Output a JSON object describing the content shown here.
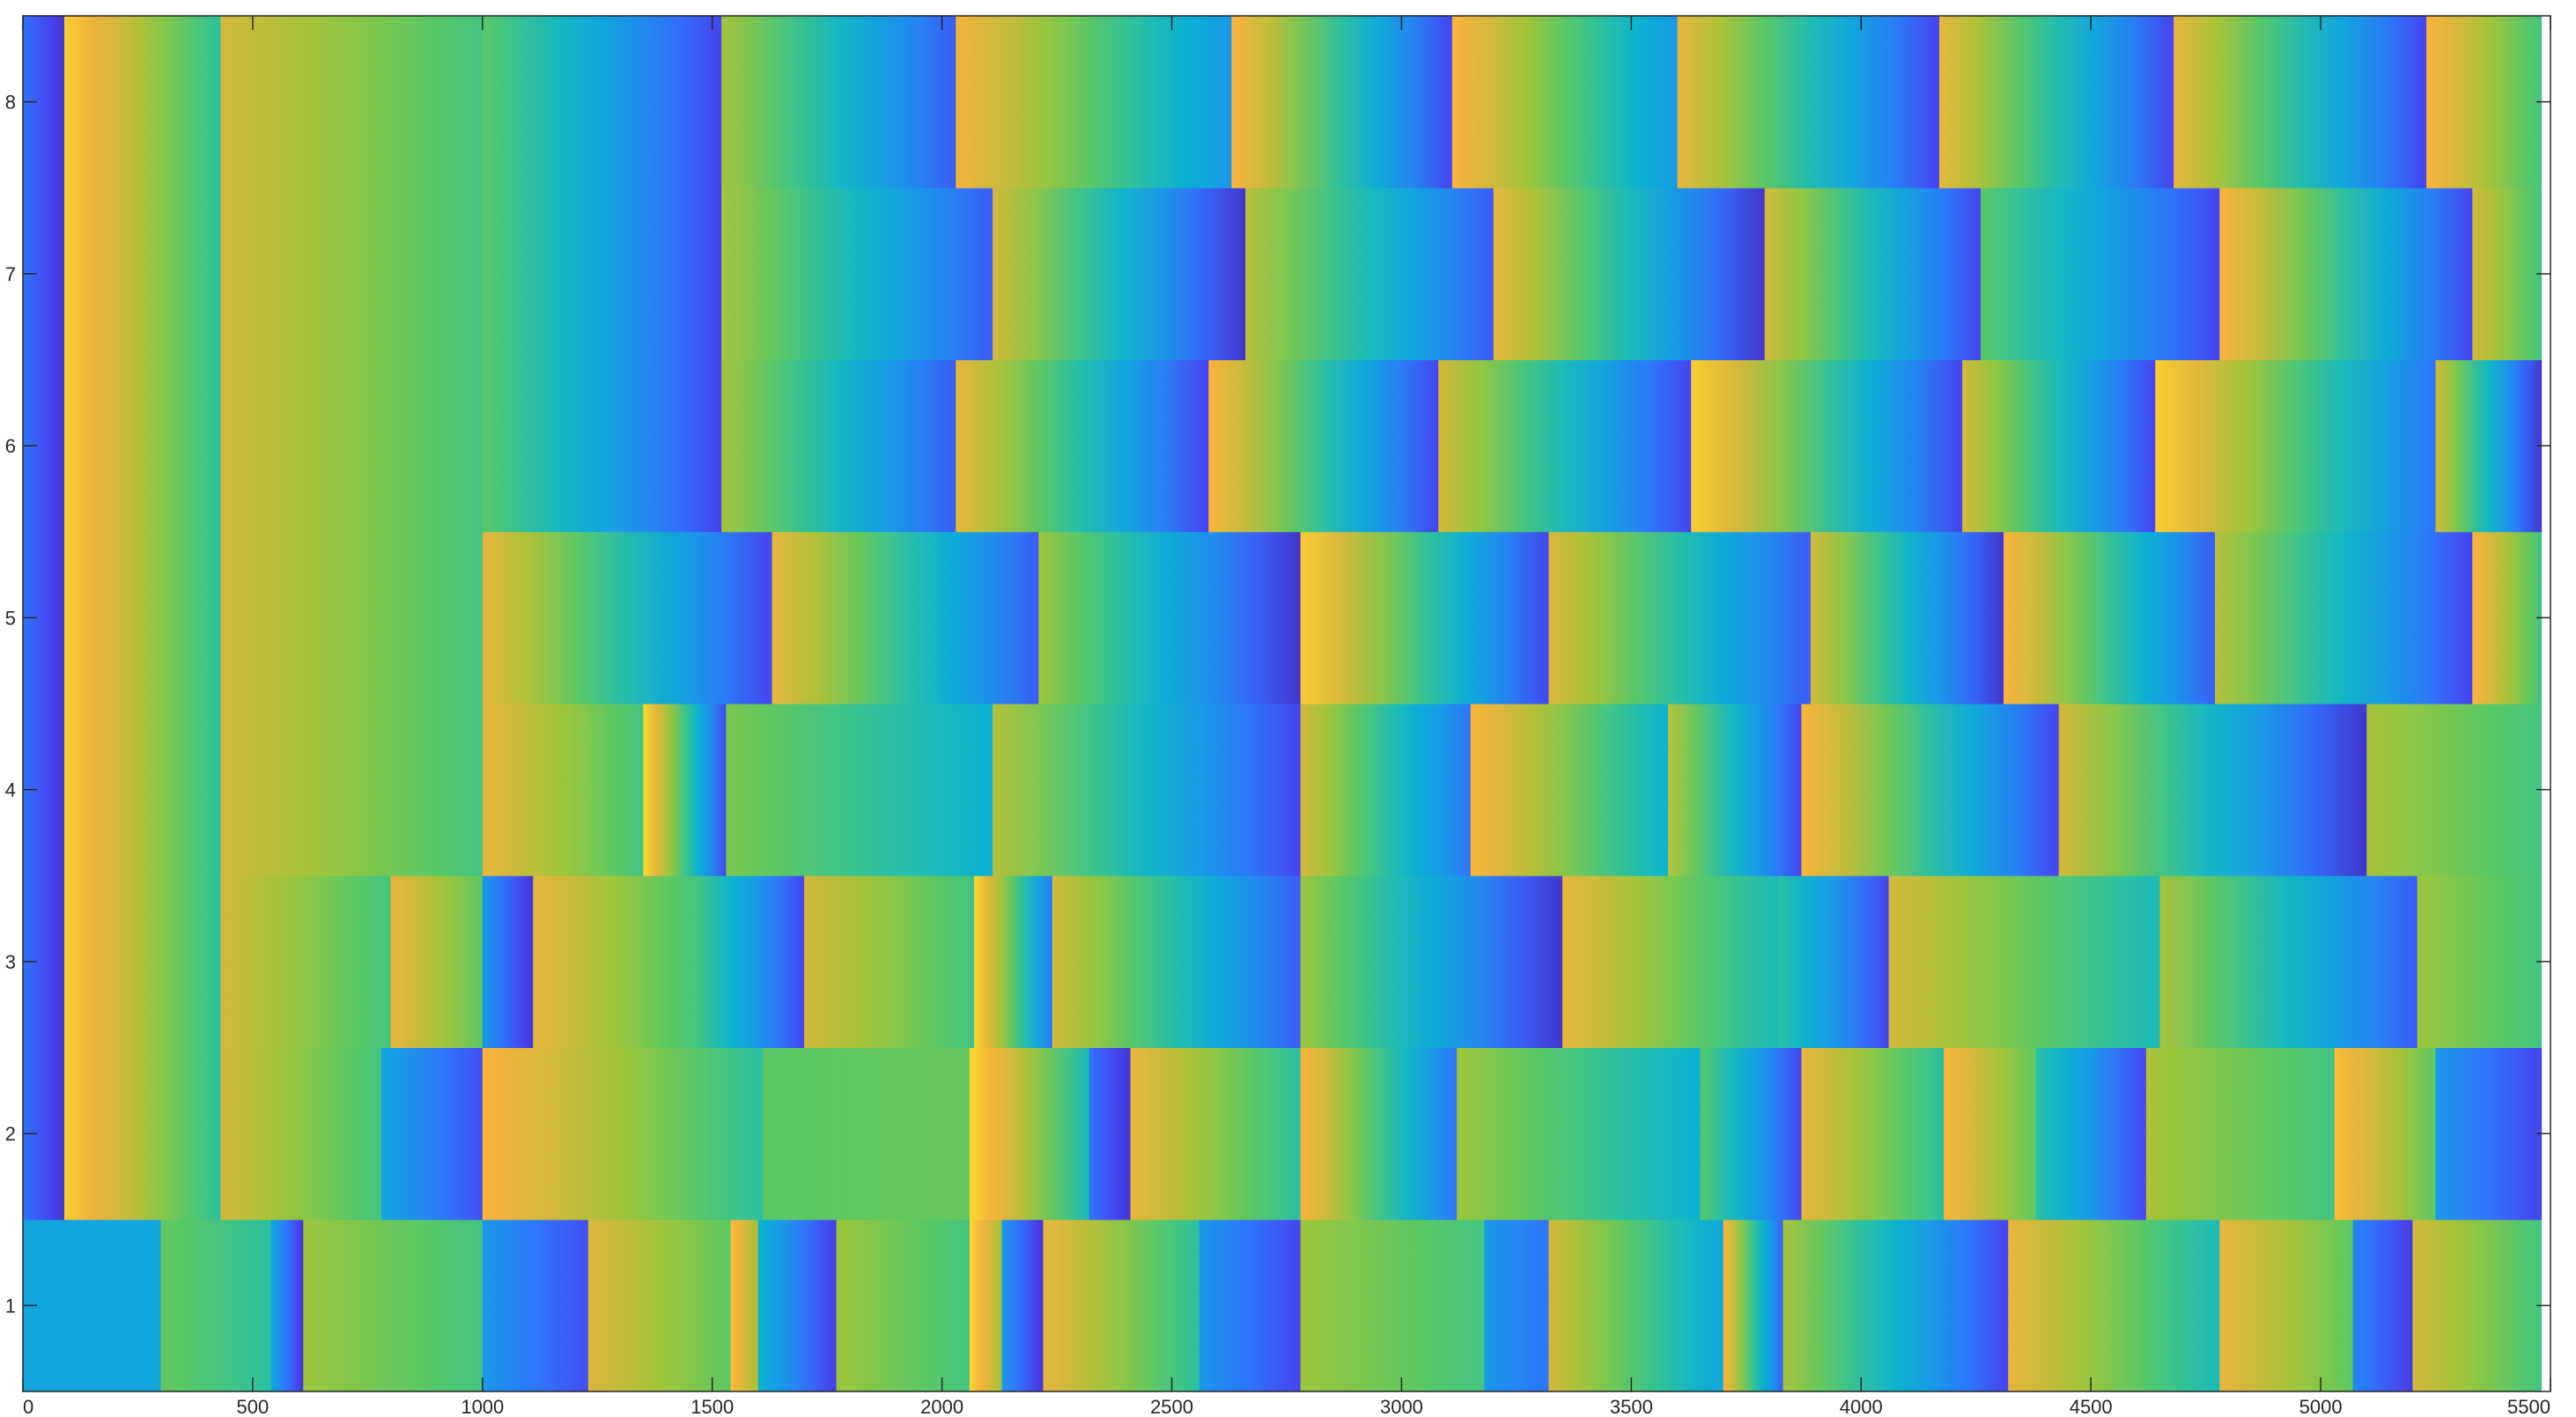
{
  "chart_data": {
    "type": "heatmap",
    "title": "",
    "xlabel": "",
    "ylabel": "",
    "xlim": [
      0,
      5500
    ],
    "ylim": [
      0.5,
      8.5
    ],
    "xticks": [
      0,
      500,
      1000,
      1500,
      2000,
      2500,
      3000,
      3500,
      4000,
      4500,
      5000,
      5500
    ],
    "yticks": [
      1,
      2,
      3,
      4,
      5,
      6,
      7,
      8
    ],
    "colormap": [
      "#3e26a8",
      "#4743f0",
      "#2f74fc",
      "#1a98e8",
      "#0ab1d3",
      "#2ac0a2",
      "#59c864",
      "#9dc53a",
      "#d3b83b",
      "#fbb33a",
      "#f8e52a"
    ],
    "color_scale": [
      0,
      1
    ],
    "grid": false,
    "legend": "none",
    "note_value_encoding": "each row lists [start_x, end_x, start_value, end_value] segments; values are normalized 0-1 colormap positions",
    "rows": [
      {
        "y": 1,
        "segments": [
          [
            0,
            300,
            0.35,
            0.35
          ],
          [
            300,
            540,
            0.62,
            0.5
          ],
          [
            540,
            610,
            0.35,
            0.05
          ],
          [
            610,
            1000,
            0.7,
            0.55
          ],
          [
            1000,
            1230,
            0.3,
            0.12
          ],
          [
            1230,
            1540,
            0.82,
            0.6
          ],
          [
            1540,
            1600,
            0.92,
            0.7
          ],
          [
            1600,
            1770,
            0.4,
            0.08
          ],
          [
            1770,
            2060,
            0.7,
            0.55
          ],
          [
            2060,
            2130,
            0.98,
            0.7
          ],
          [
            2130,
            2220,
            0.3,
            0.05
          ],
          [
            2220,
            2560,
            0.85,
            0.5
          ],
          [
            2560,
            2780,
            0.3,
            0.1
          ],
          [
            2780,
            3180,
            0.7,
            0.55
          ],
          [
            3180,
            3320,
            0.3,
            0.2
          ],
          [
            3320,
            3700,
            0.8,
            0.35
          ],
          [
            3700,
            3830,
            0.9,
            0.15
          ],
          [
            3830,
            4320,
            0.72,
            0.1
          ],
          [
            4320,
            4780,
            0.85,
            0.45
          ],
          [
            4780,
            5070,
            0.85,
            0.6
          ],
          [
            5070,
            5200,
            0.25,
            0.08
          ],
          [
            5200,
            5480,
            0.8,
            0.55
          ]
        ]
      },
      {
        "y": 2,
        "segments": [
          [
            0,
            90,
            0.2,
            0.05
          ],
          [
            90,
            430,
            0.95,
            0.5
          ],
          [
            430,
            780,
            0.8,
            0.55
          ],
          [
            780,
            1000,
            0.35,
            0.12
          ],
          [
            1000,
            1610,
            0.9,
            0.5
          ],
          [
            1610,
            2060,
            0.6,
            0.62
          ],
          [
            2060,
            2320,
            0.98,
            0.45
          ],
          [
            2320,
            2410,
            0.2,
            0.05
          ],
          [
            2410,
            2780,
            0.85,
            0.5
          ],
          [
            2780,
            3120,
            0.9,
            0.2
          ],
          [
            3120,
            3650,
            0.7,
            0.4
          ],
          [
            3650,
            3870,
            0.6,
            0.1
          ],
          [
            3870,
            4180,
            0.85,
            0.5
          ],
          [
            4180,
            4380,
            0.9,
            0.6
          ],
          [
            4380,
            4620,
            0.5,
            0.1
          ],
          [
            4620,
            5030,
            0.72,
            0.55
          ],
          [
            5030,
            5250,
            0.92,
            0.6
          ],
          [
            5250,
            5480,
            0.3,
            0.1
          ]
        ]
      },
      {
        "y": 3,
        "segments": [
          [
            0,
            90,
            0.2,
            0.05
          ],
          [
            90,
            430,
            0.95,
            0.5
          ],
          [
            430,
            800,
            0.8,
            0.55
          ],
          [
            800,
            1000,
            0.85,
            0.6
          ],
          [
            1000,
            1110,
            0.3,
            0.05
          ],
          [
            1110,
            1470,
            0.85,
            0.55
          ],
          [
            1470,
            1700,
            0.55,
            0.1
          ],
          [
            1700,
            2070,
            0.8,
            0.55
          ],
          [
            2070,
            2240,
            0.98,
            0.2
          ],
          [
            2240,
            2780,
            0.8,
            0.15
          ],
          [
            2780,
            3350,
            0.7,
            0.05
          ],
          [
            3350,
            3820,
            0.85,
            0.45
          ],
          [
            3820,
            4060,
            0.5,
            0.1
          ],
          [
            4060,
            4650,
            0.8,
            0.45
          ],
          [
            4650,
            5210,
            0.72,
            0.15
          ],
          [
            5210,
            5480,
            0.7,
            0.55
          ]
        ]
      },
      {
        "y": 4,
        "segments": [
          [
            0,
            90,
            0.2,
            0.05
          ],
          [
            90,
            430,
            0.95,
            0.5
          ],
          [
            430,
            1000,
            0.8,
            0.55
          ],
          [
            1000,
            1350,
            0.85,
            0.55
          ],
          [
            1350,
            1530,
            0.98,
            0.1
          ],
          [
            1530,
            2110,
            0.65,
            0.4
          ],
          [
            2110,
            2780,
            0.75,
            0.1
          ],
          [
            2780,
            3150,
            0.8,
            0.2
          ],
          [
            3150,
            3580,
            0.9,
            0.4
          ],
          [
            3580,
            3870,
            0.75,
            0.1
          ],
          [
            3870,
            4430,
            0.9,
            0.1
          ],
          [
            4430,
            5100,
            0.8,
            0.05
          ],
          [
            5100,
            5480,
            0.72,
            0.55
          ]
        ]
      },
      {
        "y": 5,
        "segments": [
          [
            0,
            90,
            0.2,
            0.05
          ],
          [
            90,
            430,
            0.95,
            0.5
          ],
          [
            430,
            1000,
            0.8,
            0.55
          ],
          [
            1000,
            1630,
            0.85,
            0.1
          ],
          [
            1630,
            2210,
            0.85,
            0.15
          ],
          [
            2210,
            2780,
            0.7,
            0.05
          ],
          [
            2780,
            3320,
            0.95,
            0.1
          ],
          [
            3320,
            3890,
            0.82,
            0.15
          ],
          [
            3890,
            4310,
            0.8,
            0.05
          ],
          [
            4310,
            4770,
            0.9,
            0.15
          ],
          [
            4770,
            5330,
            0.75,
            0.1
          ],
          [
            5330,
            5480,
            0.9,
            0.55
          ]
        ]
      },
      {
        "y": 6,
        "segments": [
          [
            0,
            90,
            0.2,
            0.05
          ],
          [
            90,
            430,
            0.95,
            0.5
          ],
          [
            430,
            1000,
            0.8,
            0.55
          ],
          [
            1000,
            1520,
            0.6,
            0.1
          ],
          [
            1520,
            2030,
            0.72,
            0.15
          ],
          [
            2030,
            2580,
            0.85,
            0.1
          ],
          [
            2580,
            3080,
            0.9,
            0.1
          ],
          [
            3080,
            3630,
            0.8,
            0.1
          ],
          [
            3630,
            4220,
            0.95,
            0.1
          ],
          [
            4220,
            4640,
            0.8,
            0.1
          ],
          [
            4640,
            5250,
            0.95,
            0.2
          ],
          [
            5250,
            5480,
            0.8,
            0.05
          ]
        ]
      },
      {
        "y": 7,
        "segments": [
          [
            0,
            90,
            0.2,
            0.05
          ],
          [
            90,
            430,
            0.95,
            0.5
          ],
          [
            430,
            1000,
            0.8,
            0.55
          ],
          [
            1000,
            1520,
            0.6,
            0.1
          ],
          [
            1520,
            2110,
            0.72,
            0.15
          ],
          [
            2110,
            2660,
            0.8,
            0.05
          ],
          [
            2660,
            3200,
            0.75,
            0.15
          ],
          [
            3200,
            3790,
            0.85,
            0.05
          ],
          [
            3790,
            4260,
            0.8,
            0.1
          ],
          [
            4260,
            4780,
            0.6,
            0.1
          ],
          [
            4780,
            5330,
            0.9,
            0.1
          ],
          [
            5330,
            5480,
            0.8,
            0.55
          ]
        ]
      },
      {
        "y": 8,
        "segments": [
          [
            0,
            90,
            0.2,
            0.05
          ],
          [
            90,
            430,
            0.95,
            0.5
          ],
          [
            430,
            1000,
            0.8,
            0.55
          ],
          [
            1000,
            1520,
            0.6,
            0.1
          ],
          [
            1520,
            2030,
            0.72,
            0.15
          ],
          [
            2030,
            2630,
            0.88,
            0.3
          ],
          [
            2630,
            3110,
            0.9,
            0.1
          ],
          [
            3110,
            3600,
            0.9,
            0.3
          ],
          [
            3600,
            4170,
            0.85,
            0.1
          ],
          [
            4170,
            4680,
            0.85,
            0.1
          ],
          [
            4680,
            5230,
            0.85,
            0.1
          ],
          [
            5230,
            5480,
            0.9,
            0.55
          ]
        ]
      }
    ]
  }
}
